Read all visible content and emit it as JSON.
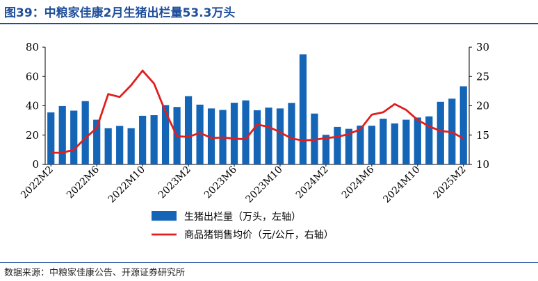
{
  "title": "图39：中粮家佳康2月生猪出栏量53.3万头",
  "source": "数据来源：中粮家佳康公告、开源证券研究所",
  "colors": {
    "bar": "#1565b7",
    "line": "#e01e1e",
    "title": "#1f4e9b"
  },
  "chart_data": {
    "type": "bar",
    "title": "图39：中粮家佳康2月生猪出栏量53.3万头",
    "categories": [
      "2022M2",
      "2022M3",
      "2022M4",
      "2022M5",
      "2022M6",
      "2022M7",
      "2022M8",
      "2022M9",
      "2022M10",
      "2022M11",
      "2022M12",
      "2023M1",
      "2023M2",
      "2023M3",
      "2023M4",
      "2023M5",
      "2023M6",
      "2023M7",
      "2023M8",
      "2023M9",
      "2023M10",
      "2023M11",
      "2023M12",
      "2024M1",
      "2024M2",
      "2024M3",
      "2024M4",
      "2024M5",
      "2024M6",
      "2024M7",
      "2024M8",
      "2024M9",
      "2024M10",
      "2024M11",
      "2024M12",
      "2025M1",
      "2025M2"
    ],
    "xtick_labels": [
      "2022M2",
      "2022M6",
      "2022M10",
      "2023M2",
      "2023M6",
      "2023M10",
      "2024M2",
      "2024M6",
      "2024M10",
      "2025M2"
    ],
    "grid": false,
    "legend_position": "bottom",
    "series": [
      {
        "name": "生猪出栏量（万头，左轴）",
        "type": "bar",
        "axis": "left",
        "values": [
          35.5,
          39.8,
          36.7,
          43.2,
          30.5,
          24.7,
          26.3,
          24.7,
          33.2,
          33.6,
          40.5,
          39.2,
          46.6,
          40.8,
          38.2,
          37.2,
          42.1,
          43.7,
          37.0,
          38.8,
          38.2,
          42.0,
          75.1,
          34.7,
          20.2,
          25.6,
          24.3,
          26.5,
          26.4,
          31.2,
          28.0,
          30.5,
          32.0,
          32.8,
          42.7,
          44.9,
          53.3
        ]
      },
      {
        "name": "商品猪销售均价（元/公斤，右轴）",
        "type": "line",
        "axis": "right",
        "values": [
          12.0,
          12.0,
          12.5,
          14.5,
          16.2,
          22.0,
          21.5,
          23.5,
          26.0,
          23.8,
          19.0,
          14.8,
          14.7,
          15.4,
          14.5,
          14.6,
          14.4,
          14.3,
          16.8,
          16.4,
          15.5,
          14.4,
          14.1,
          14.2,
          14.5,
          14.7,
          15.2,
          16.0,
          18.5,
          18.9,
          20.3,
          19.3,
          17.6,
          16.5,
          15.7,
          15.5,
          14.4
        ]
      }
    ],
    "y_left": {
      "ylim": [
        0,
        80
      ],
      "ticks": [
        "0",
        "20",
        "40",
        "60",
        "80"
      ]
    },
    "y_right": {
      "ylim": [
        10,
        30
      ],
      "ticks": [
        "10",
        "15",
        "20",
        "25",
        "30"
      ]
    }
  }
}
